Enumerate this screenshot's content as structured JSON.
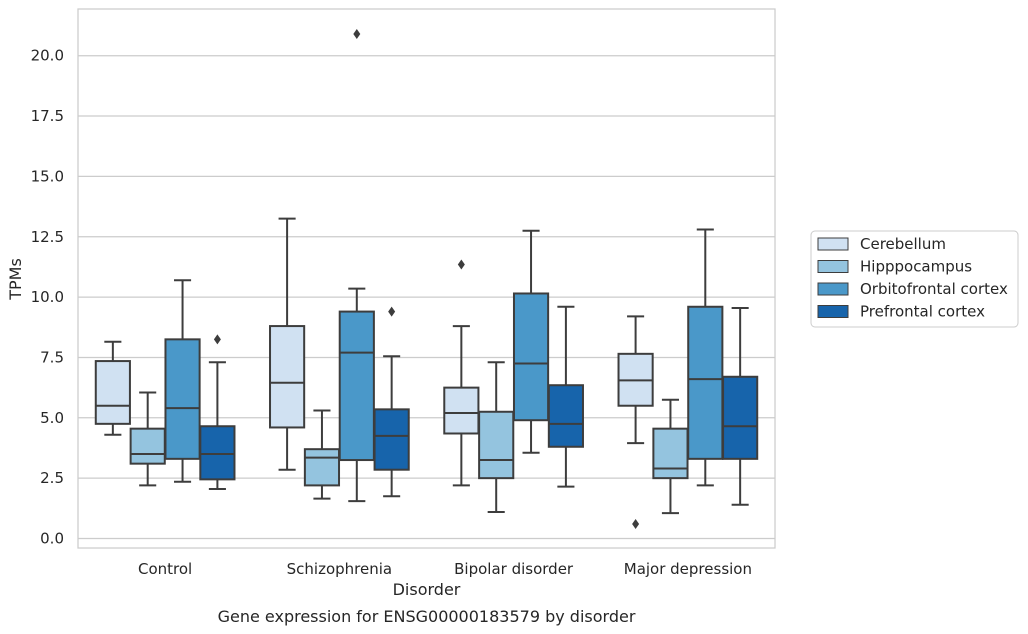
{
  "chart_data": {
    "type": "box",
    "title": "",
    "caption": "Gene expression for ENSG00000183579 by disorder",
    "xlabel": "Disorder",
    "ylabel": "TPMs",
    "ylim": [
      -0.4,
      21.9
    ],
    "yticks": [
      0.0,
      2.5,
      5.0,
      7.5,
      10.0,
      12.5,
      15.0,
      17.5,
      20.0
    ],
    "ytick_labels": [
      "0.0",
      "2.5",
      "5.0",
      "7.5",
      "10.0",
      "12.5",
      "15.0",
      "17.5",
      "20.0"
    ],
    "grid": "horizontal",
    "legend_placement": "right",
    "categories": [
      "Control",
      "Schizophrenia",
      "Bipolar disorder",
      "Major depression"
    ],
    "series": [
      {
        "name": "Cerebellum",
        "color": "#d0e1f2",
        "boxes": [
          {
            "whislo": 4.3,
            "q1": 4.75,
            "med": 5.5,
            "q3": 7.35,
            "whishi": 8.15,
            "fliers": []
          },
          {
            "whislo": 2.85,
            "q1": 4.6,
            "med": 6.45,
            "q3": 8.8,
            "whishi": 13.25,
            "fliers": []
          },
          {
            "whislo": 2.2,
            "q1": 4.35,
            "med": 5.2,
            "q3": 6.25,
            "whishi": 8.8,
            "fliers": [
              11.35
            ]
          },
          {
            "whislo": 3.95,
            "q1": 5.5,
            "med": 6.55,
            "q3": 7.65,
            "whishi": 9.2,
            "fliers": [
              0.6
            ]
          }
        ]
      },
      {
        "name": "Hipppocampus",
        "color": "#94c4df",
        "boxes": [
          {
            "whislo": 2.2,
            "q1": 3.1,
            "med": 3.5,
            "q3": 4.55,
            "whishi": 6.05,
            "fliers": []
          },
          {
            "whislo": 1.65,
            "q1": 2.2,
            "med": 3.35,
            "q3": 3.7,
            "whishi": 5.3,
            "fliers": []
          },
          {
            "whislo": 1.1,
            "q1": 2.5,
            "med": 3.25,
            "q3": 5.25,
            "whishi": 7.3,
            "fliers": []
          },
          {
            "whislo": 1.05,
            "q1": 2.5,
            "med": 2.9,
            "q3": 4.55,
            "whishi": 5.75,
            "fliers": []
          }
        ]
      },
      {
        "name": "Orbitofrontal cortex",
        "color": "#4a98c9",
        "boxes": [
          {
            "whislo": 2.35,
            "q1": 3.3,
            "med": 5.4,
            "q3": 8.25,
            "whishi": 10.7,
            "fliers": []
          },
          {
            "whislo": 1.55,
            "q1": 3.25,
            "med": 7.7,
            "q3": 9.4,
            "whishi": 10.35,
            "fliers": [
              20.9
            ]
          },
          {
            "whislo": 3.55,
            "q1": 4.9,
            "med": 7.25,
            "q3": 10.15,
            "whishi": 12.75,
            "fliers": []
          },
          {
            "whislo": 2.2,
            "q1": 3.3,
            "med": 6.6,
            "q3": 9.6,
            "whishi": 12.8,
            "fliers": []
          }
        ]
      },
      {
        "name": "Prefrontal cortex",
        "color": "#1764ab",
        "boxes": [
          {
            "whislo": 2.05,
            "q1": 2.45,
            "med": 3.5,
            "q3": 4.65,
            "whishi": 7.3,
            "fliers": [
              8.25
            ]
          },
          {
            "whislo": 1.75,
            "q1": 2.85,
            "med": 4.25,
            "q3": 5.35,
            "whishi": 7.55,
            "fliers": [
              9.4
            ]
          },
          {
            "whislo": 2.15,
            "q1": 3.8,
            "med": 4.75,
            "q3": 6.35,
            "whishi": 9.6,
            "fliers": []
          },
          {
            "whislo": 1.4,
            "q1": 3.3,
            "med": 4.65,
            "q3": 6.7,
            "whishi": 9.55,
            "fliers": []
          }
        ]
      }
    ]
  }
}
